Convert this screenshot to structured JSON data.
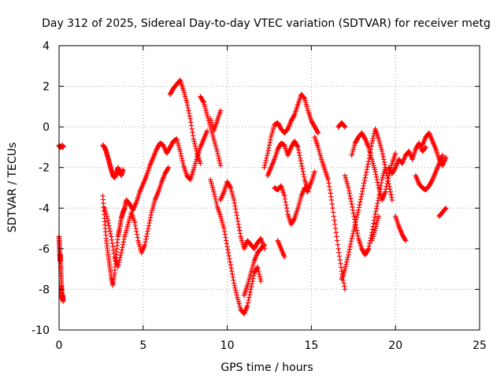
{
  "chart_data": {
    "type": "scatter",
    "title": "Day 312 of 2025, Sidereal Day-to-day VTEC variation (SDTVAR) for receiver metg",
    "xlabel": "GPS time / hours",
    "ylabel": "SDTVAR / TECUs",
    "xlim": [
      0,
      25
    ],
    "ylim": [
      -10,
      4
    ],
    "xticks": [
      0,
      5,
      10,
      15,
      20,
      25
    ],
    "yticks": [
      -10,
      -8,
      -6,
      -4,
      -2,
      0,
      2,
      4
    ],
    "grid": true,
    "marker": "plus",
    "color": "#ff0000",
    "series": [
      {
        "name": "SDTVAR",
        "segments": [
          {
            "x": [
              0.0,
              0.05,
              0.1,
              0.15,
              0.2,
              0.25
            ],
            "y": [
              -0.9,
              -1.0,
              -0.95,
              -1.0,
              -0.9,
              -1.0
            ]
          },
          {
            "x": [
              0.0,
              0.02,
              0.04,
              0.06,
              0.08,
              0.1,
              0.12,
              0.14,
              0.16,
              0.18,
              0.2,
              0.22,
              0.24
            ],
            "y": [
              -5.4,
              -5.8,
              -6.2,
              -6.6,
              -6.3,
              -6.8,
              -7.3,
              -7.8,
              -8.1,
              -8.4,
              -8.5,
              -8.3,
              -8.6
            ]
          },
          {
            "x": [
              2.6,
              2.7,
              2.8,
              2.9,
              3.0,
              3.1,
              3.2,
              3.3,
              3.4,
              3.5,
              3.6,
              3.7,
              3.8
            ],
            "y": [
              -0.9,
              -1.0,
              -1.2,
              -1.5,
              -1.8,
              -2.1,
              -2.4,
              -2.5,
              -2.3,
              -2.0,
              -2.2,
              -2.4,
              -2.1
            ]
          },
          {
            "x": [
              2.6,
              2.7,
              2.8,
              2.9,
              3.0,
              3.1,
              3.2,
              3.3,
              3.4,
              3.5,
              3.6,
              3.7,
              3.8,
              3.9,
              4.0,
              4.2,
              4.4,
              4.6,
              4.8,
              5.0,
              5.2,
              5.4,
              5.6,
              5.8,
              6.0,
              6.2,
              6.4,
              6.6,
              6.8,
              7.0
            ],
            "y": [
              -3.4,
              -4.5,
              -5.5,
              -6.2,
              -6.8,
              -7.4,
              -7.8,
              -7.2,
              -6.3,
              -5.4,
              -5.0,
              -4.5,
              -4.2,
              -4.0,
              -3.6,
              -3.8,
              -4.1,
              -3.7,
              -3.2,
              -2.8,
              -2.4,
              -1.9,
              -1.5,
              -1.1,
              -0.8,
              -0.9,
              -1.3,
              -1.0,
              -0.7,
              -0.6
            ]
          },
          {
            "x": [
              2.7,
              2.9,
              3.1,
              3.3,
              3.5,
              3.7,
              3.9,
              4.1,
              4.3,
              4.5,
              4.7,
              4.9,
              5.1,
              5.3,
              5.5,
              5.7,
              5.9,
              6.1,
              6.3,
              6.5
            ],
            "y": [
              -4.0,
              -4.6,
              -5.4,
              -6.4,
              -6.9,
              -6.2,
              -5.4,
              -4.8,
              -4.2,
              -4.7,
              -5.6,
              -6.2,
              -5.8,
              -5.0,
              -4.2,
              -3.6,
              -3.2,
              -2.7,
              -2.3,
              -2.0
            ]
          },
          {
            "x": [
              6.6,
              6.8,
              7.0,
              7.2,
              7.4,
              7.6,
              7.8,
              8.0,
              8.2,
              8.4
            ],
            "y": [
              1.6,
              1.9,
              2.1,
              2.3,
              1.8,
              1.2,
              0.4,
              -0.6,
              -1.3,
              -1.8
            ]
          },
          {
            "x": [
              7.0,
              7.2,
              7.4,
              7.6,
              7.8,
              8.0,
              8.2,
              8.4,
              8.6,
              8.8
            ],
            "y": [
              -0.6,
              -1.2,
              -1.9,
              -2.4,
              -2.6,
              -2.1,
              -1.5,
              -1.0,
              -0.6,
              -0.2
            ]
          },
          {
            "x": [
              8.4,
              8.6,
              8.8,
              9.0,
              9.2,
              9.4,
              9.6
            ],
            "y": [
              1.5,
              1.2,
              0.6,
              0.0,
              -0.6,
              -1.2,
              -1.9
            ]
          },
          {
            "x": [
              9.0,
              9.2,
              9.4,
              9.6
            ],
            "y": [
              0.4,
              -0.2,
              0.3,
              0.8
            ]
          },
          {
            "x": [
              9.0,
              9.2,
              9.4,
              9.6,
              9.8,
              10.0,
              10.2,
              10.4,
              10.6,
              10.8,
              11.0,
              11.2,
              11.4,
              11.6,
              11.8,
              12.0
            ],
            "y": [
              -2.6,
              -3.2,
              -3.9,
              -4.4,
              -5.0,
              -5.9,
              -6.8,
              -7.7,
              -8.4,
              -9.0,
              -9.2,
              -8.8,
              -8.0,
              -7.2,
              -6.9,
              -7.6
            ]
          },
          {
            "x": [
              9.6,
              9.8,
              10.0,
              10.2,
              10.4,
              10.6,
              10.8,
              11.0,
              11.2,
              11.4,
              11.6,
              11.8,
              12.0,
              12.2
            ],
            "y": [
              -3.6,
              -3.2,
              -2.7,
              -3.0,
              -3.6,
              -4.5,
              -5.4,
              -6.0,
              -5.6,
              -5.8,
              -6.0,
              -5.7,
              -5.5,
              -6.0
            ]
          },
          {
            "x": [
              11.0,
              11.2,
              11.4,
              11.6,
              11.8,
              12.0,
              12.2
            ],
            "y": [
              -8.3,
              -7.8,
              -7.2,
              -6.6,
              -6.2,
              -6.0,
              -5.8
            ]
          },
          {
            "x": [
              12.2,
              12.4,
              12.6,
              12.8,
              13.0,
              13.2,
              13.4,
              13.6,
              13.8,
              14.0,
              14.2,
              14.4,
              14.6,
              14.8,
              15.0,
              15.2,
              15.4
            ],
            "y": [
              -2.0,
              -1.3,
              -0.5,
              0.1,
              0.2,
              -0.1,
              -0.3,
              -0.1,
              0.3,
              0.6,
              1.1,
              1.6,
              1.4,
              0.8,
              0.3,
              0.0,
              -0.3
            ]
          },
          {
            "x": [
              12.4,
              12.6,
              12.8,
              13.0,
              13.2,
              13.4,
              13.6,
              13.8,
              14.0,
              14.2,
              14.4,
              14.6,
              14.8,
              15.0,
              15.2
            ],
            "y": [
              -2.4,
              -2.0,
              -1.6,
              -1.1,
              -0.8,
              -0.9,
              -1.4,
              -1.0,
              -0.7,
              -1.0,
              -1.8,
              -2.6,
              -3.1,
              -2.7,
              -2.2
            ]
          },
          {
            "x": [
              12.8,
              13.0,
              13.2,
              13.4,
              13.6,
              13.8,
              14.0,
              14.2,
              14.4,
              14.6,
              14.8
            ],
            "y": [
              -3.0,
              -3.1,
              -2.9,
              -3.4,
              -4.3,
              -4.8,
              -4.5,
              -4.0,
              -3.4,
              -3.0,
              -3.2
            ]
          },
          {
            "x": [
              13.0,
              13.2,
              13.4
            ],
            "y": [
              -5.6,
              -6.0,
              -6.4
            ]
          },
          {
            "x": [
              15.2,
              15.4,
              15.6,
              15.8,
              16.0,
              16.2,
              16.4,
              16.6,
              16.8,
              17.0
            ],
            "y": [
              -0.5,
              -1.0,
              -1.6,
              -2.1,
              -2.6,
              -3.6,
              -4.8,
              -6.0,
              -7.1,
              -8.0
            ]
          },
          {
            "x": [
              16.6,
              16.8,
              17.0
            ],
            "y": [
              0.0,
              0.2,
              0.0
            ]
          },
          {
            "x": [
              16.8,
              17.0,
              17.2,
              17.4,
              17.6,
              17.8,
              18.0,
              18.2,
              18.4,
              18.6,
              18.8,
              19.0,
              19.2,
              19.4,
              19.6,
              19.8
            ],
            "y": [
              -7.5,
              -7.0,
              -6.3,
              -5.5,
              -4.8,
              -4.1,
              -3.3,
              -2.5,
              -1.7,
              -0.8,
              -0.1,
              -0.6,
              -1.2,
              -2.0,
              -2.8,
              -3.6
            ]
          },
          {
            "x": [
              17.0,
              17.2,
              17.4,
              17.6,
              17.8,
              18.0,
              18.2,
              18.4,
              18.6,
              18.8,
              19.0,
              19.2,
              19.4
            ],
            "y": [
              -2.4,
              -3.0,
              -3.8,
              -4.7,
              -5.5,
              -6.0,
              -6.3,
              -6.0,
              -5.2,
              -4.3,
              -3.5,
              -2.6,
              -2.0
            ]
          },
          {
            "x": [
              17.4,
              17.6,
              17.8,
              18.0,
              18.2,
              18.4,
              18.6,
              18.8,
              19.0,
              19.2,
              19.4,
              19.6,
              19.8,
              20.0
            ],
            "y": [
              -1.4,
              -0.8,
              -0.5,
              -0.3,
              -0.6,
              -1.0,
              -1.6,
              -2.2,
              -3.0,
              -3.6,
              -3.2,
              -2.4,
              -1.8,
              -1.3
            ]
          },
          {
            "x": [
              18.6,
              18.8,
              19.0
            ],
            "y": [
              -5.6,
              -5.0,
              -4.4
            ]
          },
          {
            "x": [
              19.6,
              19.8,
              20.0,
              20.2,
              20.4,
              20.6,
              20.8,
              21.0,
              21.2,
              21.4,
              21.6,
              21.8
            ],
            "y": [
              -2.0,
              -2.3,
              -2.0,
              -1.6,
              -1.8,
              -1.4,
              -1.2,
              -1.6,
              -1.1,
              -0.8,
              -1.2,
              -1.0
            ]
          },
          {
            "x": [
              20.0,
              20.2,
              20.4,
              20.6
            ],
            "y": [
              -4.4,
              -4.9,
              -5.3,
              -5.6
            ]
          },
          {
            "x": [
              21.2,
              21.4,
              21.6,
              21.8,
              22.0,
              22.2,
              22.4,
              22.6,
              22.8
            ],
            "y": [
              -2.4,
              -2.8,
              -3.0,
              -3.1,
              -2.9,
              -2.6,
              -2.2,
              -1.8,
              -1.4
            ]
          },
          {
            "x": [
              21.6,
              21.8,
              22.0,
              22.2,
              22.4,
              22.6,
              22.8,
              23.0
            ],
            "y": [
              -0.9,
              -0.5,
              -0.3,
              -0.7,
              -1.1,
              -1.6,
              -1.9,
              -1.5
            ]
          },
          {
            "x": [
              22.6,
              22.8,
              23.0
            ],
            "y": [
              -4.4,
              -4.2,
              -4.0
            ]
          }
        ]
      }
    ]
  }
}
